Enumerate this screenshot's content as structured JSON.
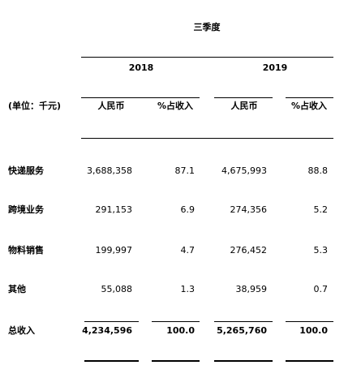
{
  "header": {
    "period": "三季度",
    "unit": "(单位：千元)",
    "years": [
      "2018",
      "2019"
    ],
    "col_amount": "人民币",
    "col_pct": "%占收入"
  },
  "rows": [
    {
      "label": "快递服务",
      "y2018": "3,688,358",
      "p2018": "87.1",
      "y2019": "4,675,993",
      "p2019": "88.8"
    },
    {
      "label": "跨境业务",
      "y2018": "291,153",
      "p2018": "6.9",
      "y2019": "274,356",
      "p2019": "5.2"
    },
    {
      "label": "物料销售",
      "y2018": "199,997",
      "p2018": "4.7",
      "y2019": "276,452",
      "p2019": "5.3"
    },
    {
      "label": "其他",
      "y2018": "55,088",
      "p2018": "1.3",
      "y2019": "38,959",
      "p2019": "0.7"
    }
  ],
  "total": {
    "label": "总收入",
    "y2018": "4,234,596",
    "p2018": "100.0",
    "y2019": "5,265,760",
    "p2019": "100.0"
  }
}
